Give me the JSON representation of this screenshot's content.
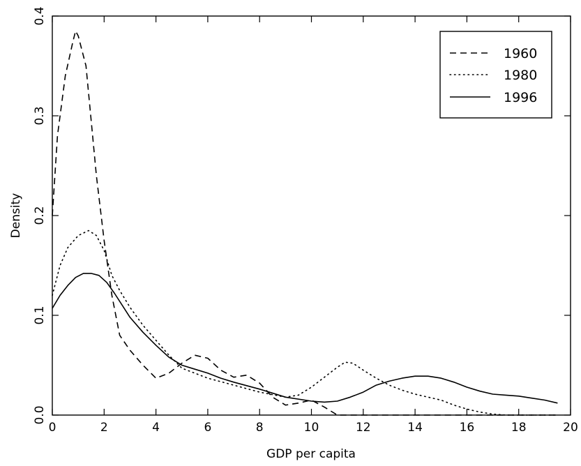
{
  "chart_data": {
    "type": "line",
    "title": "",
    "xlabel": "GDP per capita",
    "ylabel": "Density",
    "xlim": [
      0,
      20
    ],
    "ylim": [
      0,
      0.4
    ],
    "xticks": [
      0,
      2,
      4,
      6,
      8,
      10,
      12,
      14,
      16,
      18,
      20
    ],
    "yticks": [
      0.0,
      0.1,
      0.2,
      0.3,
      0.4
    ],
    "ytick_labels": [
      "0.0",
      "0.1",
      "0.2",
      "0.3",
      "0.4"
    ],
    "grid": false,
    "legend_position": "top-right",
    "series": [
      {
        "name": "1960",
        "style": "dashed",
        "color": "#000000",
        "x": [
          0.0,
          0.2,
          0.5,
          0.8,
          0.9,
          1.0,
          1.3,
          1.7,
          2.0,
          2.3,
          2.6,
          3.0,
          3.5,
          4.0,
          4.5,
          5.0,
          5.5,
          6.0,
          6.5,
          7.0,
          7.5,
          8.0,
          8.5,
          9.0,
          9.5,
          10.0,
          10.5,
          11.0,
          12.0,
          14.0,
          16.0,
          18.0,
          19.5
        ],
        "y": [
          0.2,
          0.28,
          0.34,
          0.375,
          0.385,
          0.38,
          0.35,
          0.24,
          0.175,
          0.12,
          0.08,
          0.065,
          0.05,
          0.037,
          0.042,
          0.052,
          0.06,
          0.057,
          0.045,
          0.038,
          0.04,
          0.032,
          0.018,
          0.01,
          0.012,
          0.015,
          0.008,
          0.0,
          0.0,
          0.0,
          0.0,
          0.0,
          0.0
        ]
      },
      {
        "name": "1980",
        "style": "dotted",
        "color": "#000000",
        "x": [
          0.0,
          0.3,
          0.6,
          1.0,
          1.4,
          1.7,
          2.0,
          2.3,
          2.6,
          3.0,
          3.5,
          4.0,
          4.5,
          5.0,
          6.0,
          7.0,
          8.0,
          9.0,
          9.5,
          10.0,
          10.5,
          11.0,
          11.3,
          11.6,
          12.0,
          12.5,
          13.0,
          13.5,
          14.0,
          14.5,
          15.0,
          15.5,
          16.0,
          16.5,
          17.0,
          17.5,
          18.0,
          19.0,
          19.5
        ],
        "y": [
          0.12,
          0.15,
          0.168,
          0.18,
          0.185,
          0.18,
          0.165,
          0.14,
          0.125,
          0.108,
          0.09,
          0.075,
          0.06,
          0.047,
          0.037,
          0.03,
          0.023,
          0.018,
          0.02,
          0.028,
          0.038,
          0.048,
          0.053,
          0.052,
          0.045,
          0.037,
          0.03,
          0.025,
          0.021,
          0.018,
          0.015,
          0.01,
          0.006,
          0.003,
          0.001,
          0.0,
          0.0,
          0.0,
          0.0
        ]
      },
      {
        "name": "1996",
        "style": "solid",
        "color": "#000000",
        "x": [
          0.0,
          0.3,
          0.6,
          0.9,
          1.2,
          1.5,
          1.8,
          2.1,
          2.4,
          2.7,
          3.0,
          3.5,
          4.0,
          4.5,
          5.0,
          5.5,
          6.0,
          6.5,
          7.0,
          8.0,
          9.0,
          10.0,
          10.5,
          11.0,
          11.5,
          12.0,
          12.5,
          13.0,
          13.5,
          14.0,
          14.5,
          15.0,
          15.5,
          16.0,
          16.5,
          17.0,
          17.5,
          18.0,
          18.5,
          19.0,
          19.5
        ],
        "y": [
          0.107,
          0.12,
          0.13,
          0.138,
          0.142,
          0.142,
          0.14,
          0.133,
          0.122,
          0.11,
          0.098,
          0.083,
          0.07,
          0.058,
          0.05,
          0.046,
          0.042,
          0.037,
          0.033,
          0.026,
          0.018,
          0.014,
          0.013,
          0.014,
          0.018,
          0.023,
          0.03,
          0.034,
          0.037,
          0.039,
          0.039,
          0.037,
          0.033,
          0.028,
          0.024,
          0.021,
          0.02,
          0.019,
          0.017,
          0.015,
          0.012
        ]
      }
    ]
  }
}
